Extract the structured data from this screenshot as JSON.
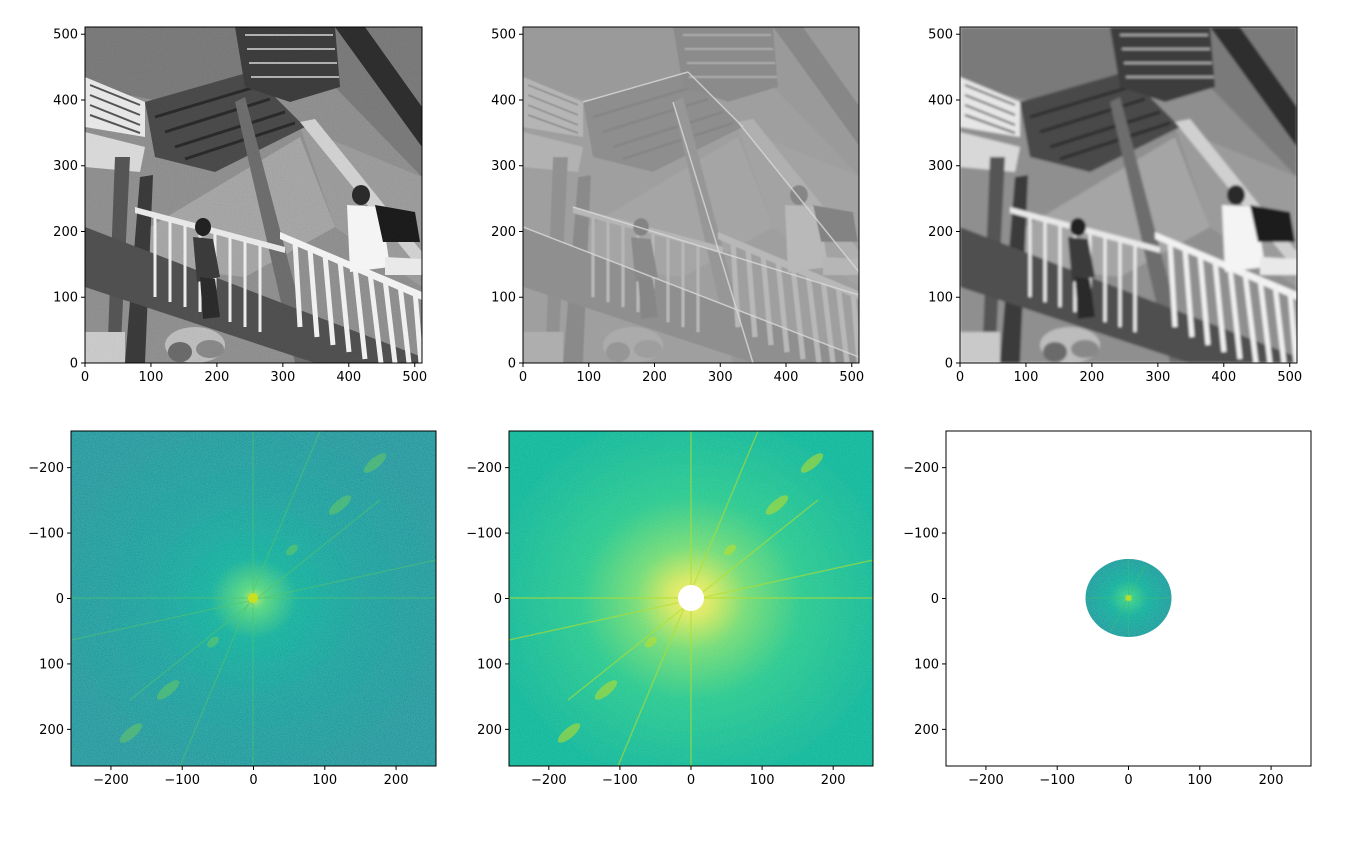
{
  "chart_data": [
    {
      "type": "heatmap",
      "content": "grayscale photo: steel stairway with walking people",
      "colormap": "gray",
      "xlim": [
        0,
        511
      ],
      "ylim": [
        511,
        0
      ],
      "xticks": [
        "0",
        "100",
        "200",
        "300",
        "400",
        "500"
      ],
      "yticks": [
        "0",
        "100",
        "200",
        "300",
        "400",
        "500"
      ],
      "title": "",
      "xlabel": "",
      "ylabel": ""
    },
    {
      "type": "heatmap",
      "content": "high-pass filtered image (edges emphasised, mid-gray background)",
      "colormap": "gray",
      "xlim": [
        0,
        511
      ],
      "ylim": [
        511,
        0
      ],
      "xticks": [
        "0",
        "100",
        "200",
        "300",
        "400",
        "500"
      ],
      "yticks": [
        "0",
        "100",
        "200",
        "300",
        "400",
        "500"
      ],
      "title": "",
      "xlabel": "",
      "ylabel": ""
    },
    {
      "type": "heatmap",
      "content": "low-pass filtered image (blurred with ringing)",
      "colormap": "gray",
      "xlim": [
        0,
        511
      ],
      "ylim": [
        511,
        0
      ],
      "xticks": [
        "0",
        "100",
        "200",
        "300",
        "400",
        "500"
      ],
      "yticks": [
        "0",
        "100",
        "200",
        "300",
        "400",
        "500"
      ],
      "title": "",
      "xlabel": "",
      "ylabel": ""
    },
    {
      "type": "heatmap",
      "content": "log magnitude spectrum (centred FFT)",
      "colormap": "viridis",
      "xlim": [
        -256,
        256
      ],
      "ylim": [
        -256,
        256
      ],
      "xticks": [
        "−200",
        "−100",
        "0",
        "100",
        "200"
      ],
      "yticks": [
        "200",
        "100",
        "0",
        "−100",
        "−200"
      ],
      "title": "",
      "xlabel": "",
      "ylabel": ""
    },
    {
      "type": "heatmap",
      "content": "spectrum with low frequencies masked (hole radius ~ 20)",
      "colormap": "viridis",
      "mask_radius": 20,
      "xlim": [
        -256,
        256
      ],
      "ylim": [
        -256,
        256
      ],
      "xticks": [
        "−200",
        "−100",
        "0",
        "100",
        "200"
      ],
      "yticks": [
        "200",
        "100",
        "0",
        "−100",
        "−200"
      ],
      "title": "",
      "xlabel": "",
      "ylabel": ""
    },
    {
      "type": "heatmap",
      "content": "spectrum with only low frequencies kept (disc radius ~ 60)",
      "colormap": "viridis",
      "keep_radius": 60,
      "xlim": [
        -256,
        256
      ],
      "ylim": [
        -256,
        256
      ],
      "xticks": [
        "−200",
        "−100",
        "0",
        "100",
        "200"
      ],
      "yticks": [
        "200",
        "100",
        "0",
        "−100",
        "−200"
      ],
      "title": "",
      "xlabel": "",
      "ylabel": ""
    }
  ]
}
